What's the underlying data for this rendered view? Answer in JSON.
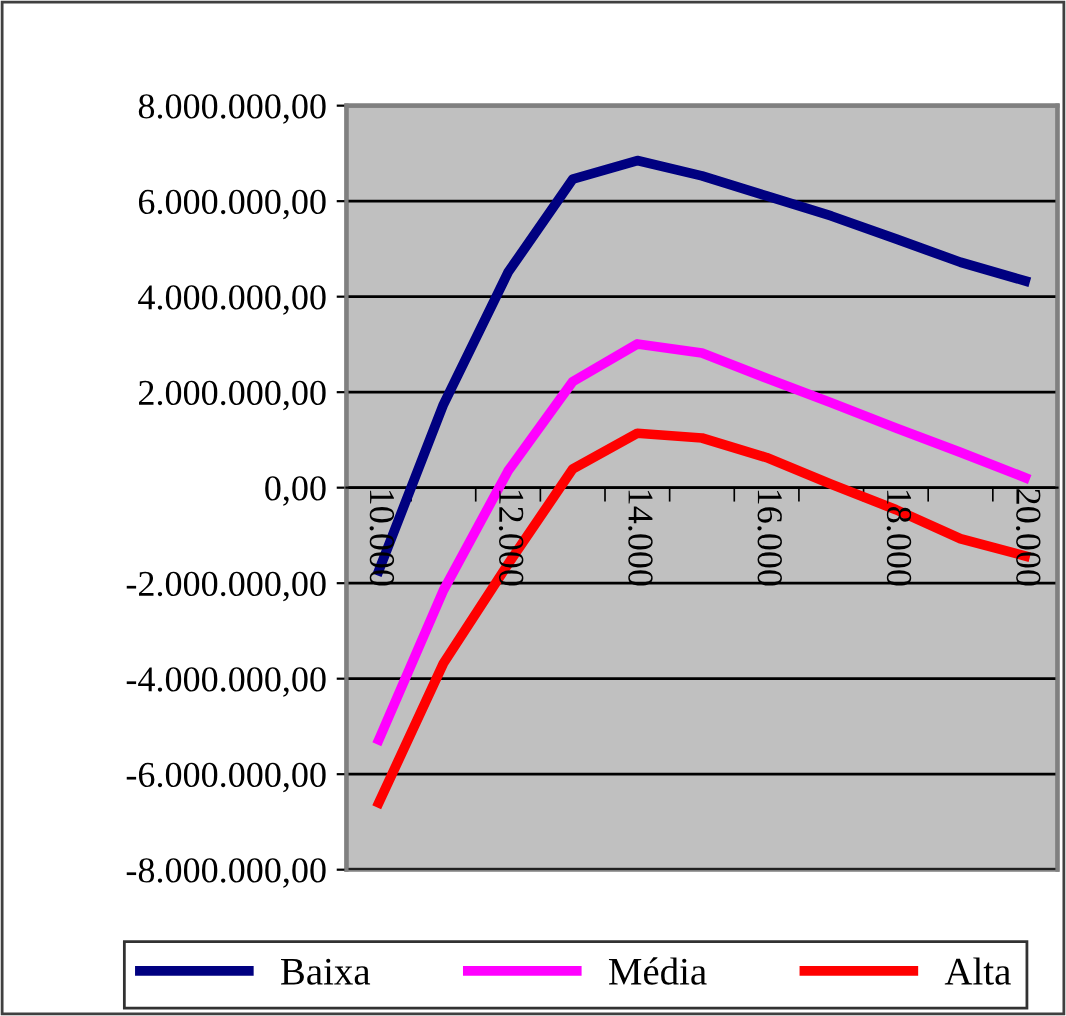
{
  "chart_data": {
    "type": "line",
    "categories": [
      "10.000",
      null,
      "12.000",
      null,
      "14.000",
      null,
      "16.000",
      null,
      "18.000",
      null,
      "20.000"
    ],
    "series": [
      {
        "name": "Baixa",
        "color": "#000080",
        "values": [
          -1740000,
          1740000,
          4510000,
          6460000,
          6850000,
          6530000,
          6110000,
          5690000,
          5210000,
          4720000,
          4330000
        ]
      },
      {
        "name": "Média",
        "color": "#ff00ff",
        "values": [
          -5280000,
          -2150000,
          350000,
          2220000,
          3010000,
          2820000,
          2290000,
          1780000,
          1250000,
          740000,
          210000
        ]
      },
      {
        "name": "Alta",
        "color": "#ff0000",
        "values": [
          -6600000,
          -3680000,
          -1600000,
          390000,
          1140000,
          1040000,
          630000,
          70000,
          -460000,
          -1070000,
          -1430000
        ]
      }
    ],
    "ylim": [
      -8000000,
      8000000
    ],
    "yticks": [
      {
        "value": 8000000,
        "label": "8.000.000,00"
      },
      {
        "value": 6000000,
        "label": "6.000.000,00"
      },
      {
        "value": 4000000,
        "label": "4.000.000,00"
      },
      {
        "value": 2000000,
        "label": "2.000.000,00"
      },
      {
        "value": 0,
        "label": "0,00"
      },
      {
        "value": -2000000,
        "label": "-2.000.000,00"
      },
      {
        "value": -4000000,
        "label": "-4.000.000,00"
      },
      {
        "value": -6000000,
        "label": "-6.000.000,00"
      },
      {
        "value": -8000000,
        "label": "-8.000.000,00"
      }
    ],
    "grid": "y",
    "legend": "bottom",
    "marker": "none",
    "line_style": "solid"
  }
}
